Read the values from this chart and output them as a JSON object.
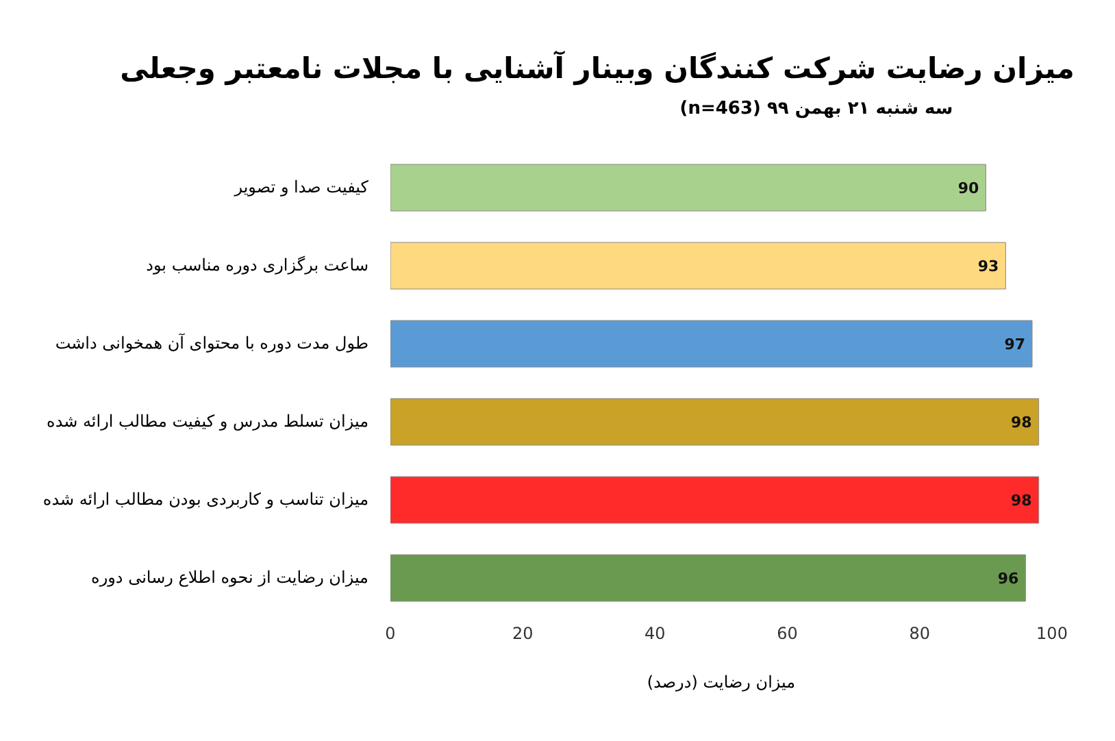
{
  "chart_data": {
    "type": "bar",
    "orientation": "horizontal",
    "title": "میزان رضایت شرکت کنندگان وبینار آشنایی با مجلات نامعتبر وجعلی",
    "subtitle": "سه شنبه ۲۱ بهمن ۹۹       (n=463)",
    "xlabel": "میزان رضایت (درصد)",
    "categories": [
      "کیفیت صدا و تصویر",
      "ساعت برگزاری دوره مناسب بود",
      "طول مدت دوره با محتوای آن همخوانی داشت",
      "میزان تسلط مدرس و کیفیت مطالب ارائه شده",
      "میزان تناسب و کاربردی بودن مطالب ارائه شده",
      "میزان رضایت از نحوه اطلاع رسانی دوره"
    ],
    "values": [
      90,
      93,
      97,
      98,
      98,
      96
    ],
    "colors": [
      "#a9d18e",
      "#ffd97f",
      "#5b9bd5",
      "#c9a227",
      "#ff2a2a",
      "#6a9a4f"
    ],
    "xlim": [
      0,
      100
    ],
    "xticks": [
      0,
      20,
      40,
      60,
      80,
      100
    ],
    "grid": false,
    "legend": false,
    "data_labels": true
  }
}
